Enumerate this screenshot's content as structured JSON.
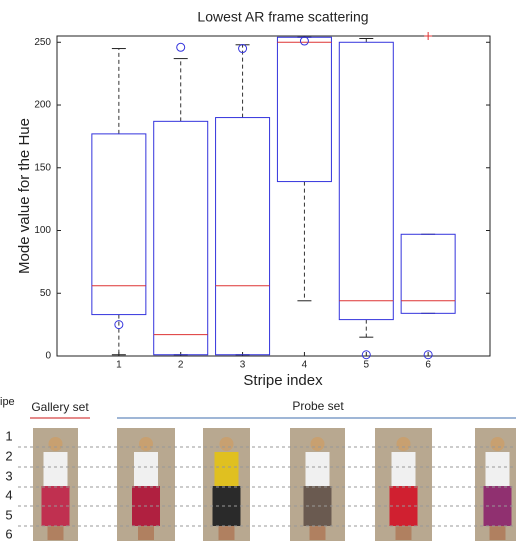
{
  "chart_data": {
    "type": "box",
    "title": "Lowest AR frame scattering",
    "x_label": "Stripe index",
    "y_label": "Mode value for the Hue",
    "categories": [
      "1",
      "2",
      "3",
      "4",
      "5",
      "6"
    ],
    "boxes": [
      {
        "whisker_low": 1,
        "q1": 33,
        "median": 56,
        "q3": 177,
        "whisker_high": 245,
        "outliers": [
          25
        ]
      },
      {
        "whisker_low": 1,
        "q1": 1,
        "median": 17,
        "q3": 187,
        "whisker_high": 237,
        "outliers": [
          246
        ]
      },
      {
        "whisker_low": 1,
        "q1": 1,
        "median": 56,
        "q3": 190,
        "whisker_high": 248,
        "outliers": [
          245
        ]
      },
      {
        "whisker_low": 44,
        "q1": 139,
        "median": 250,
        "q3": 254,
        "whisker_high": 254,
        "outliers": [
          251
        ]
      },
      {
        "whisker_low": 15,
        "q1": 29,
        "median": 44,
        "q3": 250,
        "whisker_high": 253,
        "outliers": [
          1
        ]
      },
      {
        "whisker_low": 34,
        "q1": 34,
        "median": 44,
        "q3": 97,
        "whisker_high": 97,
        "outliers": [
          1
        ],
        "plus": [
          255
        ]
      }
    ],
    "box_color": "#3333dd",
    "median_color": "#dd3333",
    "whisker_color": "#333333",
    "ylim": [
      0,
      255
    ],
    "yticks": [
      0,
      50,
      100,
      150,
      200,
      250
    ]
  },
  "figure": {
    "stripe_label": "ipe",
    "stripes": [
      "1",
      "2",
      "3",
      "4",
      "5",
      "6"
    ],
    "gallery_label": "Gallery set",
    "probe_label": "Probe set"
  }
}
